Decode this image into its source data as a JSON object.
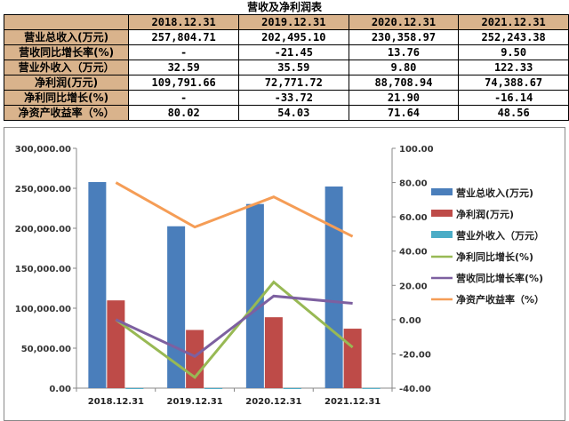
{
  "table": {
    "title": "营收及净利润表",
    "headers": [
      "",
      "2018.12.31",
      "2019.12.31",
      "2020.12.31",
      "2021.12.31"
    ],
    "rows": [
      {
        "label": "营业总收入(万元)",
        "values": [
          "257,804.71",
          "202,495.10",
          "230,358.97",
          "252,243.38"
        ]
      },
      {
        "label": "营收同比增长率(%)",
        "values": [
          "-",
          "-21.45",
          "13.76",
          "9.50"
        ]
      },
      {
        "label": "营业外收入（万元）",
        "values": [
          "32.59",
          "35.59",
          "9.80",
          "122.33"
        ]
      },
      {
        "label": "净利润(万元)",
        "values": [
          "109,791.66",
          "72,771.72",
          "88,708.94",
          "74,388.67"
        ]
      },
      {
        "label": "净利同比增长(%)",
        "values": [
          "-",
          "-33.72",
          "21.90",
          "-16.14"
        ]
      },
      {
        "label": "净资产收益率（%）",
        "values": [
          "80.02",
          "54.03",
          "71.64",
          "48.56"
        ]
      }
    ]
  },
  "chart_data": {
    "type": "bar+line",
    "categories": [
      "2018.12.31",
      "2019.12.31",
      "2020.12.31",
      "2021.12.31"
    ],
    "y_left": {
      "range": [
        0,
        300000
      ],
      "ticks": [
        "0.00",
        "50,000.00",
        "100,000.00",
        "150,000.00",
        "200,000.00",
        "250,000.00",
        "300,000.00"
      ]
    },
    "y_right": {
      "range": [
        -40,
        100
      ],
      "ticks": [
        "-40.00",
        "-20.00",
        "0.00",
        "20.00",
        "40.00",
        "60.00",
        "80.00",
        "100.00"
      ]
    },
    "legend_placement": "right",
    "bars": [
      {
        "name": "营业总收入(万元)",
        "color": "#4a7ebb",
        "values": [
          257804.71,
          202495.1,
          230358.97,
          252243.38
        ]
      },
      {
        "name": "净利润(万元)",
        "color": "#be4b48",
        "values": [
          109791.66,
          72771.72,
          88708.94,
          74388.67
        ]
      },
      {
        "name": "营业外收入（万元）",
        "color": "#4bacc6",
        "values": [
          32.59,
          35.59,
          9.8,
          122.33
        ]
      }
    ],
    "lines": [
      {
        "name": "净利同比增长(%)",
        "color": "#98b954",
        "values": [
          0,
          -33.72,
          21.9,
          -16.14
        ]
      },
      {
        "name": "营收同比增长率(%)",
        "color": "#7d60a0",
        "values": [
          0,
          -21.45,
          13.76,
          9.5
        ]
      },
      {
        "name": "净资产收益率（%）",
        "color": "#f59d56",
        "values": [
          80.02,
          54.03,
          71.64,
          48.56
        ]
      }
    ]
  }
}
